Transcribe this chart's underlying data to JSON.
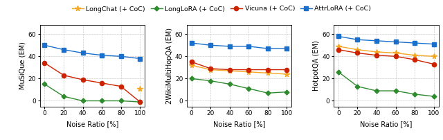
{
  "x": [
    0,
    20,
    40,
    60,
    80,
    100
  ],
  "panels": [
    {
      "ylabel": "MuSiQue (EM)",
      "xlabel": "Noise Ratio [%]",
      "series": {
        "LongChat (+ CoC)": [
          null,
          null,
          null,
          null,
          null,
          11
        ],
        "LongLoRA (+ CoC)": [
          15,
          4,
          0,
          0,
          0,
          -1
        ],
        "Vicuna (+ CoC)": [
          34,
          23,
          19,
          16,
          13,
          -1
        ],
        "AttrLoRA (+ CoC)": [
          50,
          46,
          43,
          41,
          40,
          38
        ]
      }
    },
    {
      "ylabel": "2WikiMultiHopQA (EM)",
      "xlabel": "Noise Ratio [%]",
      "series": {
        "LongChat (+ CoC)": [
          32,
          28,
          27,
          26,
          25,
          24
        ],
        "LongLoRA (+ CoC)": [
          20,
          18,
          15,
          11,
          7,
          8
        ],
        "Vicuna (+ CoC)": [
          35,
          29,
          28,
          28,
          28,
          28
        ],
        "AttrLoRA (+ CoC)": [
          52,
          50,
          49,
          49,
          47,
          47
        ]
      }
    },
    {
      "ylabel": "HotpotQA (EM)",
      "xlabel": "Noise Ratio [%]",
      "series": {
        "LongChat (+ CoC)": [
          49,
          46,
          44,
          43,
          41,
          40
        ],
        "LongLoRA (+ CoC)": [
          26,
          13,
          9,
          9,
          6,
          4
        ],
        "Vicuna (+ CoC)": [
          46,
          43,
          41,
          40,
          37,
          33
        ],
        "AttrLoRA (+ CoC)": [
          58,
          55,
          54,
          53,
          52,
          51
        ]
      }
    }
  ],
  "series_styles": {
    "LongChat (+ CoC)": {
      "color": "#f5a623",
      "marker": "*",
      "markersize": 5.5
    },
    "LongLoRA (+ CoC)": {
      "color": "#2e8b2e",
      "marker": "D",
      "markersize": 3.5
    },
    "Vicuna (+ CoC)": {
      "color": "#cc2200",
      "marker": "o",
      "markersize": 4.5
    },
    "AttrLoRA (+ CoC)": {
      "color": "#1b6fcc",
      "marker": "s",
      "markersize": 4.5
    }
  },
  "ylim": [
    -5,
    68
  ],
  "yticks": [
    0,
    20,
    40,
    60
  ],
  "legend_order": [
    "LongChat (+ CoC)",
    "LongLoRA (+ CoC)",
    "Vicuna (+ CoC)",
    "AttrLoRA (+ CoC)"
  ],
  "figsize": [
    6.4,
    2.02
  ],
  "dpi": 100
}
